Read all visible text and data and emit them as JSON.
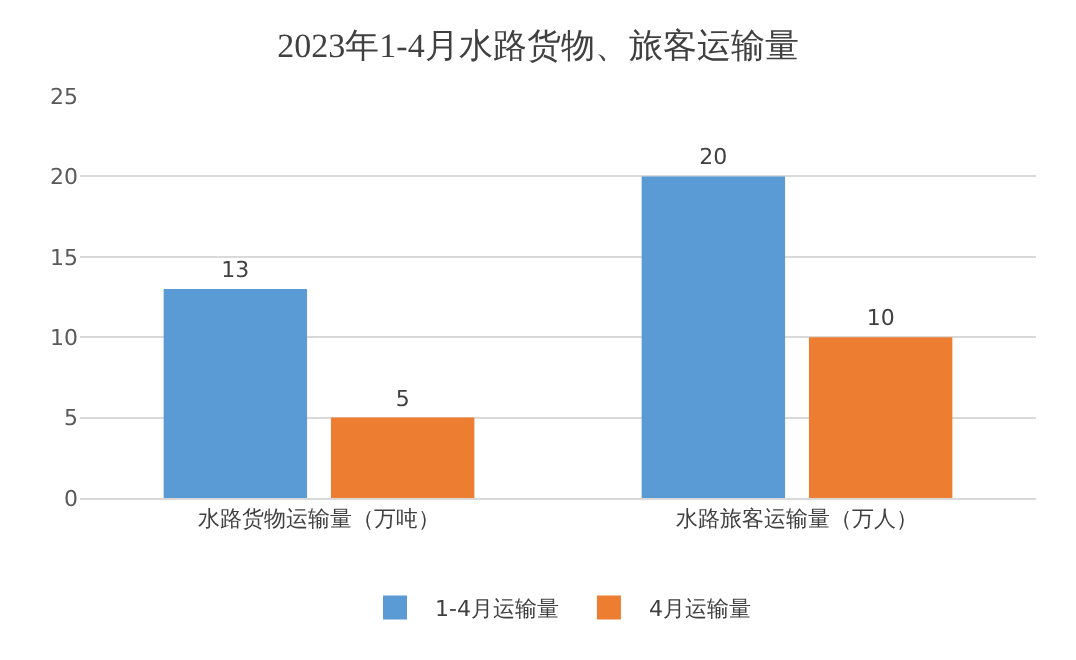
{
  "chart_data": {
    "type": "bar",
    "title": "2023年1-4月水路货物、旅客运输量",
    "categories": [
      "水路货物运输量（万吨）",
      "水路旅客运输量（万人）"
    ],
    "series": [
      {
        "name": "1-4月运输量",
        "color": "#5b9bd5",
        "values": [
          13,
          20
        ]
      },
      {
        "name": "4月运输量",
        "color": "#ed7d31",
        "values": [
          5,
          10
        ]
      }
    ],
    "ylim": [
      0,
      25
    ],
    "yticks": [
      0,
      5,
      10,
      15,
      20,
      25
    ],
    "grid": "y",
    "legend": "bottom",
    "data_labels": true
  }
}
